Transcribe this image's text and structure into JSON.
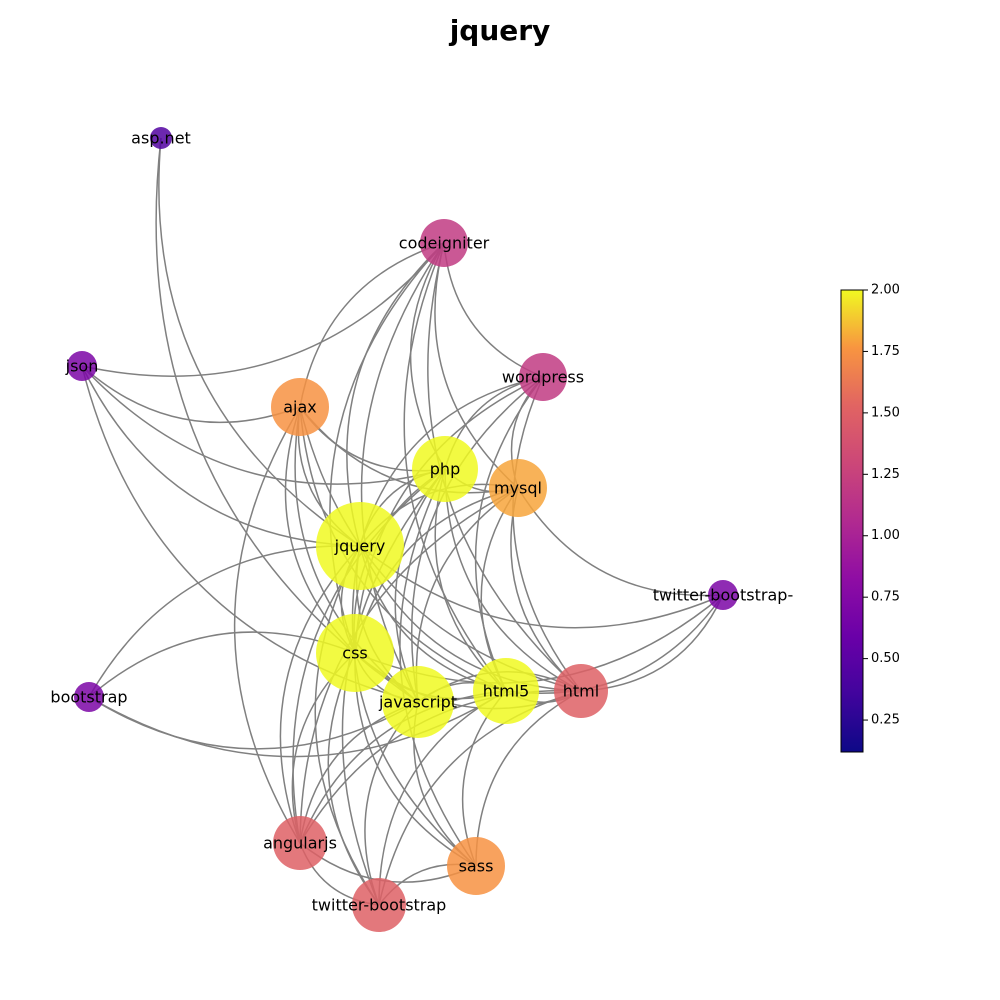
{
  "title": "jquery",
  "nodes": [
    {
      "id": "asp.net",
      "label": "asp.net",
      "value": 0.45
    },
    {
      "id": "codeigniter",
      "label": "codeigniter",
      "value": 1.2
    },
    {
      "id": "json",
      "label": "json",
      "value": 0.7
    },
    {
      "id": "wordpress",
      "label": "wordpress",
      "value": 1.2
    },
    {
      "id": "ajax",
      "label": "ajax",
      "value": 1.75
    },
    {
      "id": "php",
      "label": "php",
      "value": 2.0
    },
    {
      "id": "mysql",
      "label": "mysql",
      "value": 1.8
    },
    {
      "id": "jquery",
      "label": "jquery",
      "value": 2.0
    },
    {
      "id": "twitter-bootstrap-",
      "label": "twitter-bootstrap-",
      "value": 0.7
    },
    {
      "id": "css",
      "label": "css",
      "value": 2.0
    },
    {
      "id": "bootstrap",
      "label": "bootstrap",
      "value": 0.7
    },
    {
      "id": "html5",
      "label": "html5",
      "value": 2.0
    },
    {
      "id": "html",
      "label": "html",
      "value": 1.5
    },
    {
      "id": "javascript",
      "label": "javascript",
      "value": 2.0
    },
    {
      "id": "angularjs",
      "label": "angularjs",
      "value": 1.5
    },
    {
      "id": "sass",
      "label": "sass",
      "value": 1.75
    },
    {
      "id": "twitter-bootstrap",
      "label": "twitter-bootstrap",
      "value": 1.5
    }
  ],
  "edges": [
    [
      "asp.net",
      "jquery"
    ],
    [
      "asp.net",
      "javascript"
    ],
    [
      "json",
      "jquery"
    ],
    [
      "json",
      "ajax"
    ],
    [
      "json",
      "php"
    ],
    [
      "json",
      "codeigniter"
    ],
    [
      "json",
      "javascript"
    ],
    [
      "codeigniter",
      "php"
    ],
    [
      "codeigniter",
      "mysql"
    ],
    [
      "codeigniter",
      "jquery"
    ],
    [
      "codeigniter",
      "wordpress"
    ],
    [
      "codeigniter",
      "ajax"
    ],
    [
      "codeigniter",
      "css"
    ],
    [
      "codeigniter",
      "javascript"
    ],
    [
      "codeigniter",
      "html5"
    ],
    [
      "codeigniter",
      "html"
    ],
    [
      "wordpress",
      "php"
    ],
    [
      "wordpress",
      "mysql"
    ],
    [
      "wordpress",
      "jquery"
    ],
    [
      "wordpress",
      "css"
    ],
    [
      "wordpress",
      "javascript"
    ],
    [
      "wordpress",
      "html"
    ],
    [
      "wordpress",
      "html5"
    ],
    [
      "ajax",
      "jquery"
    ],
    [
      "ajax",
      "php"
    ],
    [
      "ajax",
      "mysql"
    ],
    [
      "ajax",
      "javascript"
    ],
    [
      "ajax",
      "css"
    ],
    [
      "ajax",
      "html5"
    ],
    [
      "ajax",
      "html"
    ],
    [
      "ajax",
      "angularjs"
    ],
    [
      "php",
      "mysql"
    ],
    [
      "php",
      "jquery"
    ],
    [
      "php",
      "css"
    ],
    [
      "php",
      "javascript"
    ],
    [
      "php",
      "html5"
    ],
    [
      "php",
      "html"
    ],
    [
      "php",
      "sass"
    ],
    [
      "php",
      "twitter-bootstrap"
    ],
    [
      "php",
      "angularjs"
    ],
    [
      "mysql",
      "jquery"
    ],
    [
      "mysql",
      "css"
    ],
    [
      "mysql",
      "javascript"
    ],
    [
      "mysql",
      "html5"
    ],
    [
      "mysql",
      "html"
    ],
    [
      "mysql",
      "twitter-bootstrap-"
    ],
    [
      "mysql",
      "angularjs"
    ],
    [
      "jquery",
      "css"
    ],
    [
      "jquery",
      "javascript"
    ],
    [
      "jquery",
      "html5"
    ],
    [
      "jquery",
      "html"
    ],
    [
      "jquery",
      "angularjs"
    ],
    [
      "jquery",
      "sass"
    ],
    [
      "jquery",
      "twitter-bootstrap"
    ],
    [
      "jquery",
      "bootstrap"
    ],
    [
      "jquery",
      "twitter-bootstrap-"
    ],
    [
      "css",
      "javascript"
    ],
    [
      "css",
      "html5"
    ],
    [
      "css",
      "html"
    ],
    [
      "css",
      "sass"
    ],
    [
      "css",
      "twitter-bootstrap"
    ],
    [
      "css",
      "angularjs"
    ],
    [
      "css",
      "bootstrap"
    ],
    [
      "css",
      "twitter-bootstrap-"
    ],
    [
      "bootstrap",
      "javascript"
    ],
    [
      "bootstrap",
      "html5"
    ],
    [
      "html5",
      "javascript"
    ],
    [
      "html5",
      "html"
    ],
    [
      "html5",
      "sass"
    ],
    [
      "html5",
      "angularjs"
    ],
    [
      "html5",
      "twitter-bootstrap"
    ],
    [
      "html5",
      "twitter-bootstrap-"
    ],
    [
      "html",
      "javascript"
    ],
    [
      "html",
      "sass"
    ],
    [
      "html",
      "angularjs"
    ],
    [
      "html",
      "twitter-bootstrap"
    ],
    [
      "html",
      "twitter-bootstrap-"
    ],
    [
      "javascript",
      "angularjs"
    ],
    [
      "javascript",
      "sass"
    ],
    [
      "javascript",
      "twitter-bootstrap"
    ],
    [
      "angularjs",
      "sass"
    ],
    [
      "angularjs",
      "twitter-bootstrap"
    ],
    [
      "sass",
      "twitter-bootstrap"
    ]
  ],
  "colorbar": {
    "min": 0.12,
    "max": 2.0,
    "ticks": [
      "0.25",
      "0.50",
      "0.75",
      "1.00",
      "1.25",
      "1.50",
      "1.75",
      "2.00"
    ],
    "colormap": "plasma"
  },
  "colors": {
    "edge": "#808080",
    "node_alpha": 0.85
  }
}
